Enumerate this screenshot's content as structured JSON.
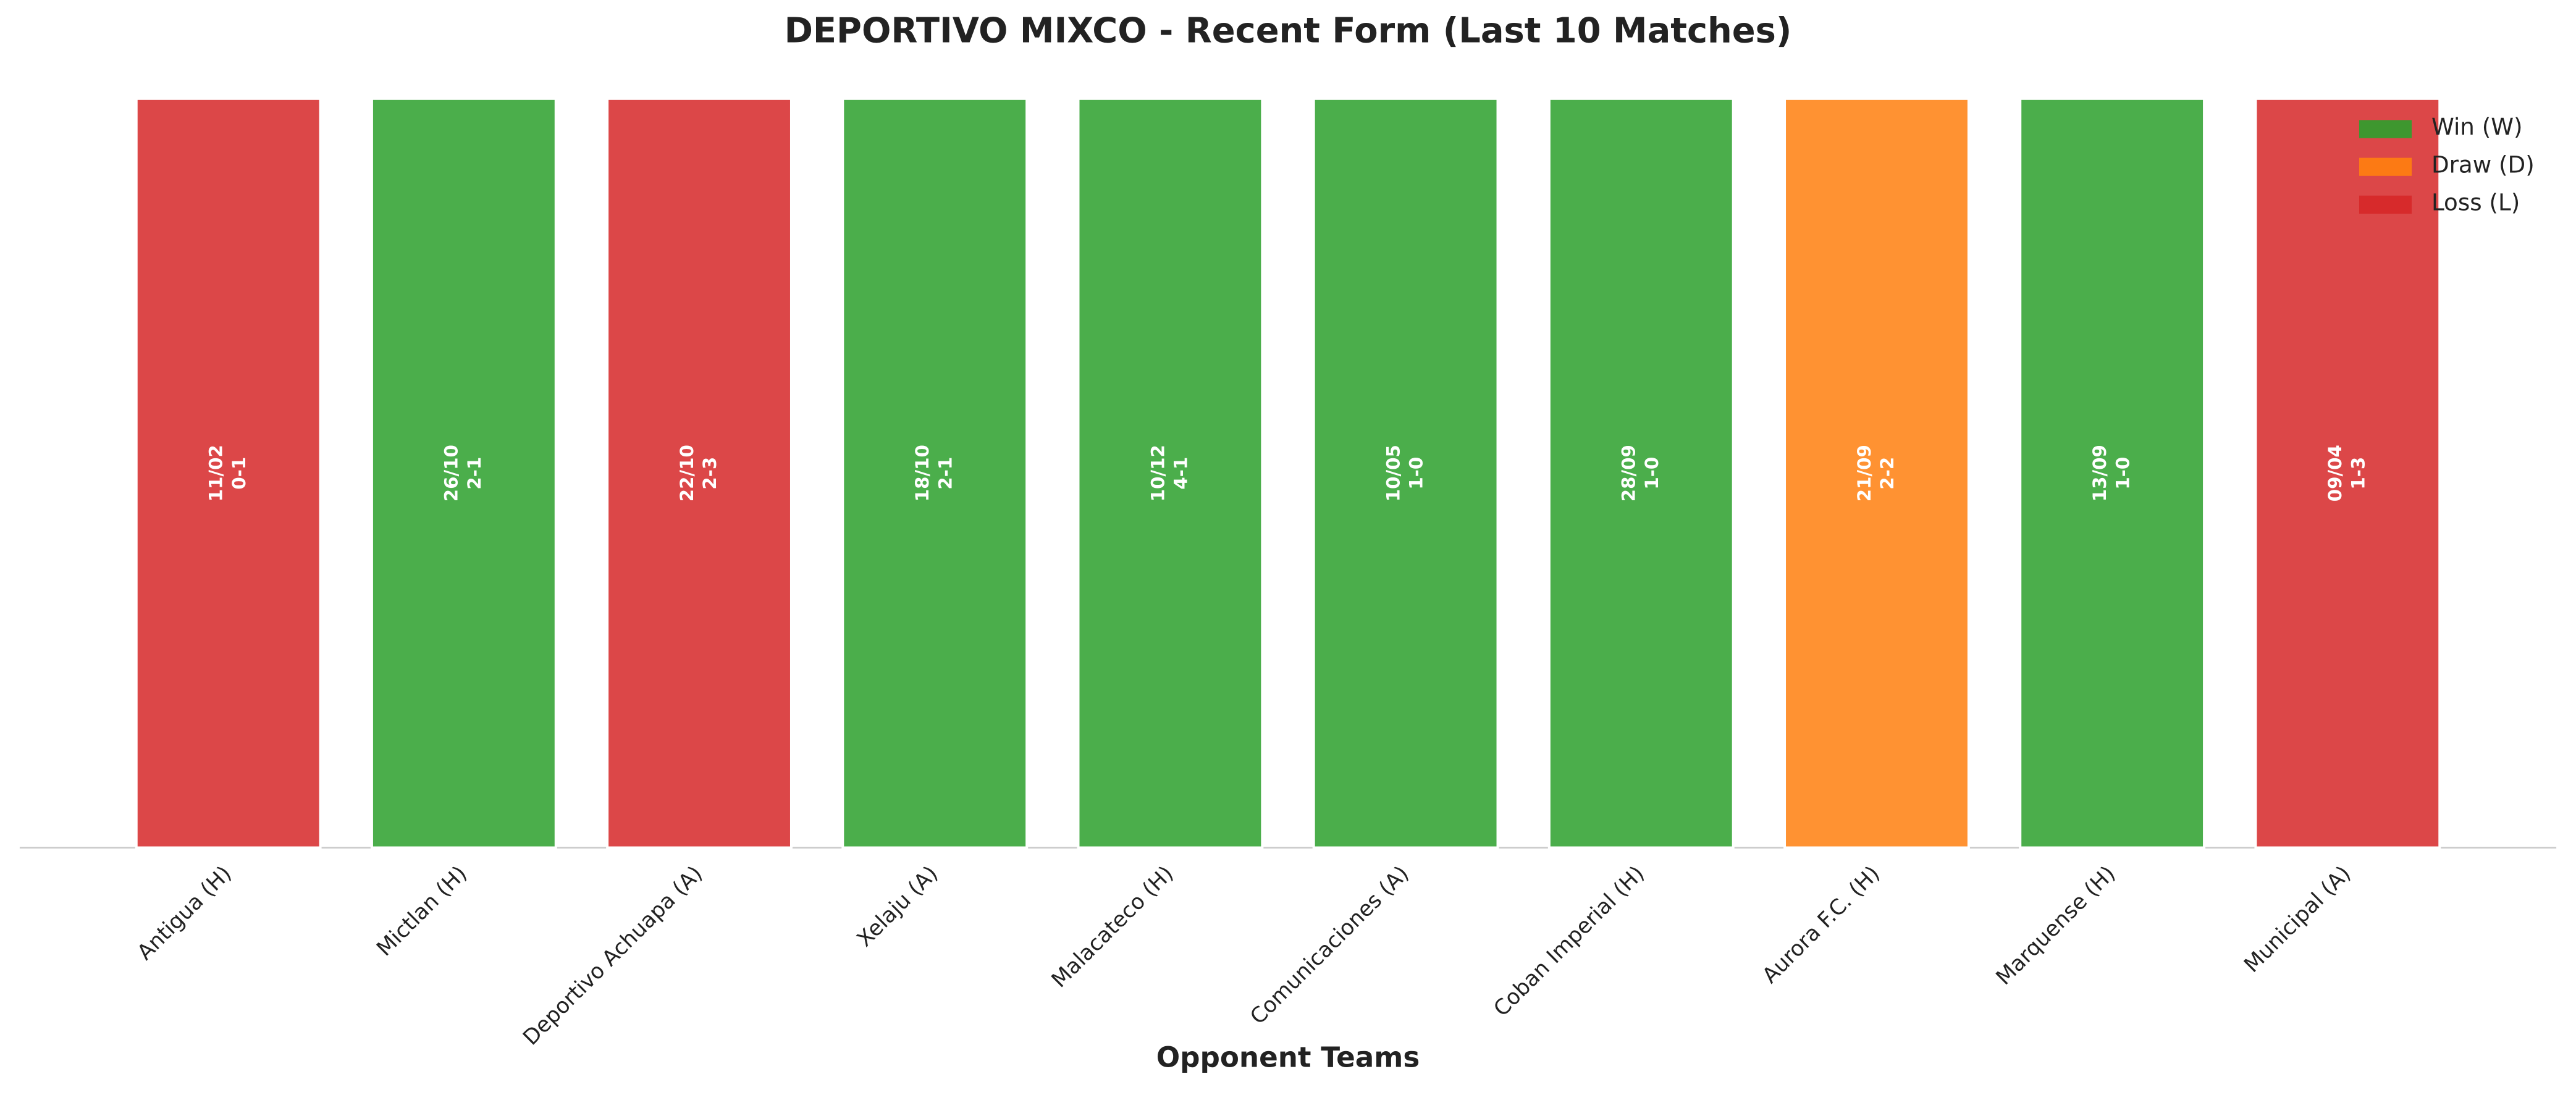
{
  "chart_data": {
    "type": "bar",
    "title": "DEPORTIVO MIXCO - Recent Form (Last 10 Matches)",
    "x_label": "Opponent Teams",
    "categories": [
      "Antigua (H)",
      "Mictlan (H)",
      "Deportivo Achuapa (A)",
      "Xelaju (A)",
      "Malacateco (H)",
      "Comunicaciones (A)",
      "Coban Imperial (H)",
      "Aurora F.C. (H)",
      "Marquense (H)",
      "Municipal (A)"
    ],
    "values": [
      1,
      1,
      1,
      1,
      1,
      1,
      1,
      1,
      1,
      1
    ],
    "ylim": [
      0,
      1
    ],
    "results": [
      "L",
      "W",
      "L",
      "W",
      "W",
      "W",
      "W",
      "D",
      "W",
      "L"
    ],
    "dates": [
      "11/02",
      "26/10",
      "22/10",
      "18/10",
      "10/12",
      "10/05",
      "28/09",
      "21/09",
      "13/09",
      "09/04"
    ],
    "scores": [
      "0-1",
      "2-1",
      "2-3",
      "2-1",
      "4-1",
      "1-0",
      "1-0",
      "2-2",
      "1-0",
      "1-3"
    ],
    "legend": [
      {
        "label": "Win (W)",
        "result": "W",
        "color": "#2ca02c"
      },
      {
        "label": "Draw (D)",
        "result": "D",
        "color": "#ff7f0e"
      },
      {
        "label": "Loss (L)",
        "result": "L",
        "color": "#d62728"
      }
    ],
    "legend_position": "upper right"
  }
}
